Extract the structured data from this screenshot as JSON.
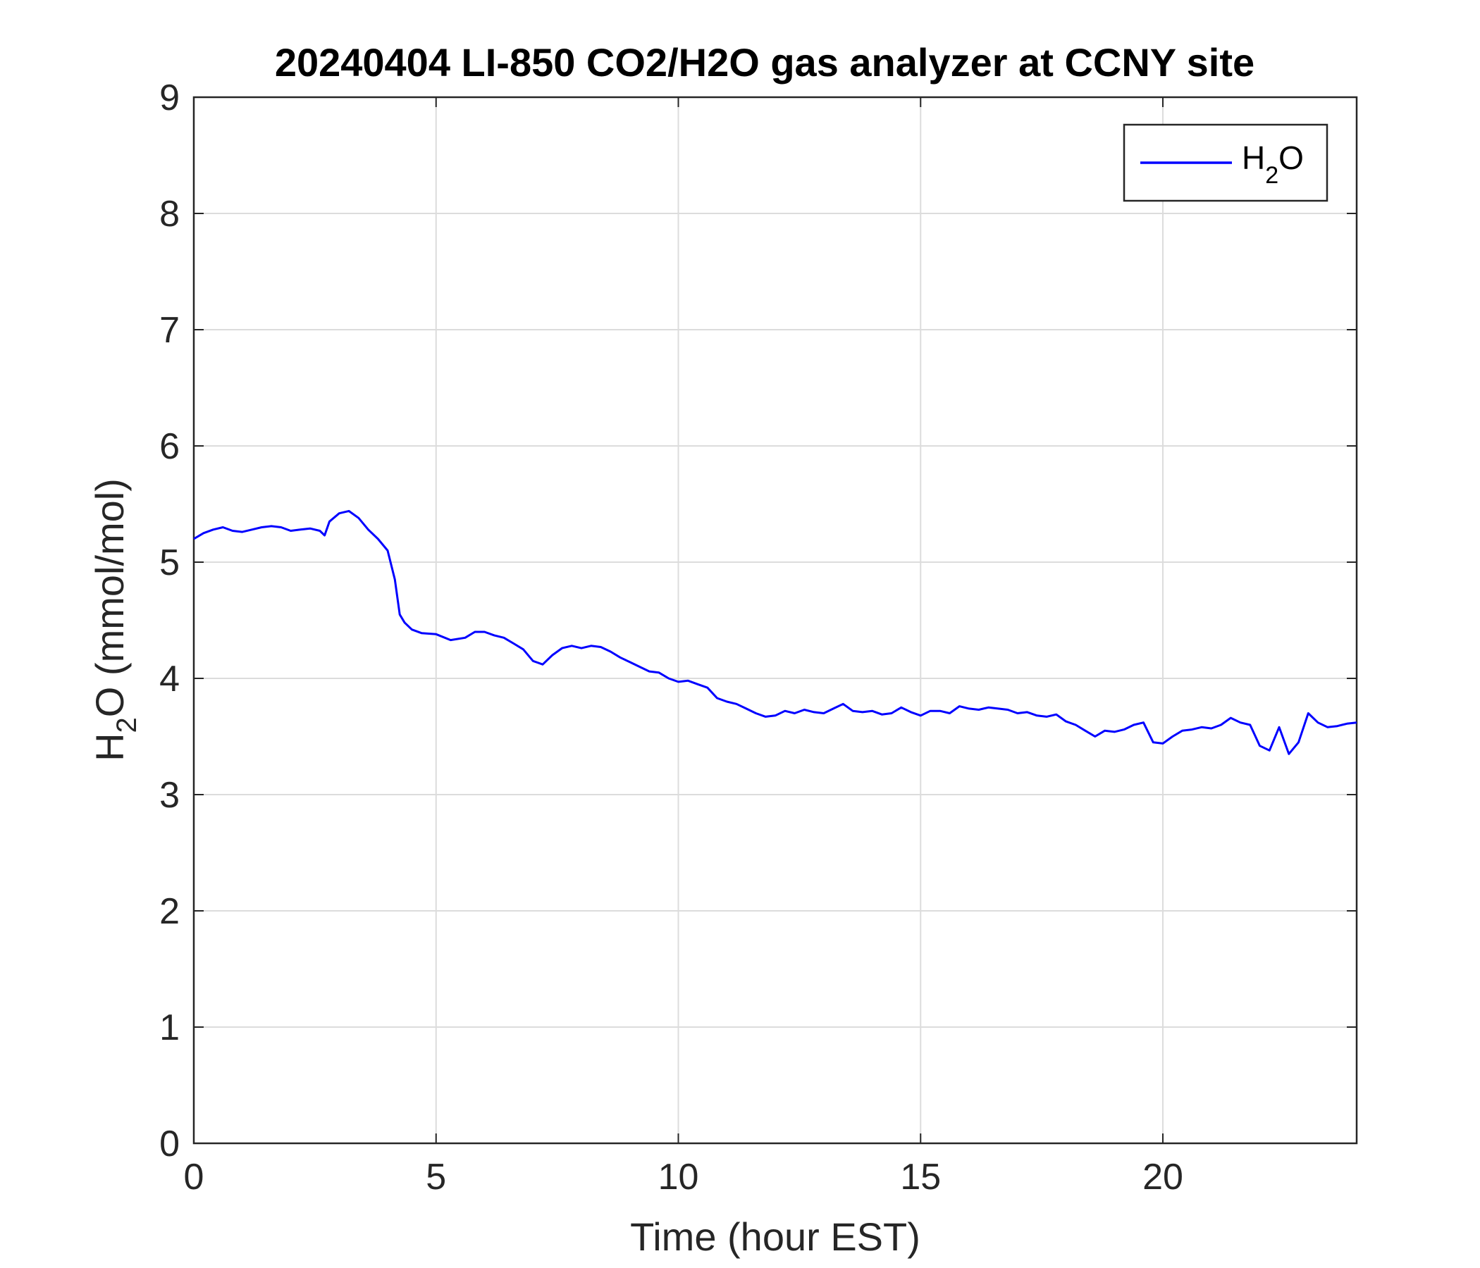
{
  "chart_data": {
    "type": "line",
    "title": "20240404 LI-850 CO2/H2O gas analyzer at CCNY site",
    "xlabel": "Time (hour EST)",
    "ylabel": {
      "main": "H",
      "sub": "2",
      "rest": "O (mmol/mol)"
    },
    "xlim": [
      0,
      24
    ],
    "ylim": [
      0,
      9
    ],
    "xticks": [
      0,
      5,
      10,
      15,
      20
    ],
    "yticks": [
      0,
      1,
      2,
      3,
      4,
      5,
      6,
      7,
      8,
      9
    ],
    "grid": true,
    "legend_position": "top-right",
    "series": [
      {
        "name": {
          "main": "H",
          "sub": "2",
          "rest": "O"
        },
        "color": "#0000ff",
        "x": [
          0.0,
          0.2,
          0.4,
          0.6,
          0.8,
          1.0,
          1.2,
          1.4,
          1.6,
          1.8,
          2.0,
          2.2,
          2.4,
          2.6,
          2.7,
          2.8,
          3.0,
          3.2,
          3.4,
          3.6,
          3.8,
          4.0,
          4.15,
          4.25,
          4.35,
          4.5,
          4.7,
          5.0,
          5.3,
          5.6,
          5.8,
          6.0,
          6.2,
          6.4,
          6.6,
          6.8,
          7.0,
          7.2,
          7.4,
          7.6,
          7.8,
          8.0,
          8.2,
          8.4,
          8.6,
          8.8,
          9.0,
          9.2,
          9.4,
          9.6,
          9.8,
          10.0,
          10.2,
          10.4,
          10.6,
          10.8,
          11.0,
          11.2,
          11.4,
          11.6,
          11.8,
          12.0,
          12.2,
          12.4,
          12.6,
          12.8,
          13.0,
          13.2,
          13.4,
          13.6,
          13.8,
          14.0,
          14.2,
          14.4,
          14.6,
          14.8,
          15.0,
          15.2,
          15.4,
          15.6,
          15.8,
          16.0,
          16.2,
          16.4,
          16.6,
          16.8,
          17.0,
          17.2,
          17.4,
          17.6,
          17.8,
          18.0,
          18.2,
          18.4,
          18.6,
          18.8,
          19.0,
          19.2,
          19.4,
          19.6,
          19.8,
          20.0,
          20.2,
          20.4,
          20.6,
          20.8,
          21.0,
          21.2,
          21.4,
          21.6,
          21.8,
          22.0,
          22.2,
          22.4,
          22.6,
          22.8,
          23.0,
          23.2,
          23.4,
          23.6,
          23.8,
          24.0
        ],
        "values": [
          5.2,
          5.25,
          5.28,
          5.3,
          5.27,
          5.26,
          5.28,
          5.3,
          5.31,
          5.3,
          5.27,
          5.28,
          5.29,
          5.27,
          5.23,
          5.35,
          5.42,
          5.44,
          5.38,
          5.28,
          5.2,
          5.1,
          4.85,
          4.55,
          4.48,
          4.42,
          4.39,
          4.38,
          4.33,
          4.35,
          4.4,
          4.4,
          4.37,
          4.35,
          4.3,
          4.25,
          4.15,
          4.12,
          4.2,
          4.26,
          4.28,
          4.26,
          4.28,
          4.27,
          4.23,
          4.18,
          4.14,
          4.1,
          4.06,
          4.05,
          4.0,
          3.97,
          3.98,
          3.95,
          3.92,
          3.83,
          3.8,
          3.78,
          3.74,
          3.7,
          3.67,
          3.68,
          3.72,
          3.7,
          3.73,
          3.71,
          3.7,
          3.74,
          3.78,
          3.72,
          3.71,
          3.72,
          3.69,
          3.7,
          3.75,
          3.71,
          3.68,
          3.72,
          3.72,
          3.7,
          3.76,
          3.74,
          3.73,
          3.75,
          3.74,
          3.73,
          3.7,
          3.71,
          3.68,
          3.67,
          3.69,
          3.63,
          3.6,
          3.55,
          3.5,
          3.55,
          3.54,
          3.56,
          3.6,
          3.62,
          3.45,
          3.44,
          3.5,
          3.55,
          3.56,
          3.58,
          3.57,
          3.6,
          3.66,
          3.62,
          3.6,
          3.42,
          3.38,
          3.58,
          3.35,
          3.45,
          3.7,
          3.62,
          3.58,
          3.59,
          3.61,
          3.62
        ]
      }
    ]
  }
}
